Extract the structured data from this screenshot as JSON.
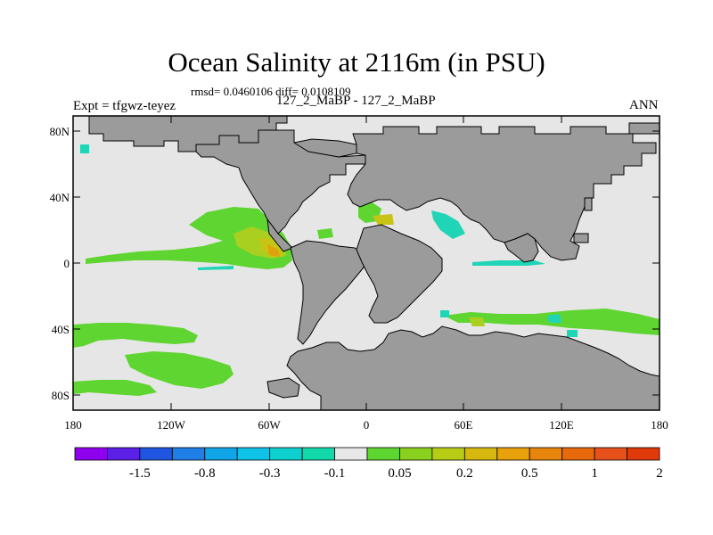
{
  "title": "Ocean Salinity at 2116m (in PSU)",
  "stats": "rmsd= 0.0460106 diff= 0.0108109",
  "expt": "Expt = tfgwz-teyez",
  "runs": "127_2_MaBP - 127_2_MaBP",
  "season": "ANN",
  "y_ticks": [
    "80N",
    "40N",
    "0",
    "40S",
    "80S"
  ],
  "x_ticks": [
    "180",
    "120W",
    "60W",
    "0",
    "60E",
    "120E",
    "180"
  ],
  "colorbar": {
    "colors": [
      "#8f00ef",
      "#5b1fe6",
      "#1f55e0",
      "#1f7fe6",
      "#10a5e6",
      "#0fc3e6",
      "#0ed0cf",
      "#12d9a9",
      "#e8e8e8",
      "#5fd531",
      "#8ad01f",
      "#b7cc15",
      "#d6b80e",
      "#e8a00c",
      "#e8850c",
      "#e8680c",
      "#e8501a",
      "#e03a0a"
    ],
    "labels": [
      "-1.5",
      "-0.8",
      "-0.3",
      "-0.1",
      "0.05",
      "0.2",
      "0.5",
      "1",
      "2"
    ]
  },
  "colors": {
    "land": "#9b9b9b",
    "ocean": "#e6e6e6",
    "green": "#5fd531",
    "yellowgreen": "#a9cf20",
    "yellow": "#c8c415",
    "orange": "#e0a20c",
    "cyan": "#20d5b5"
  }
}
